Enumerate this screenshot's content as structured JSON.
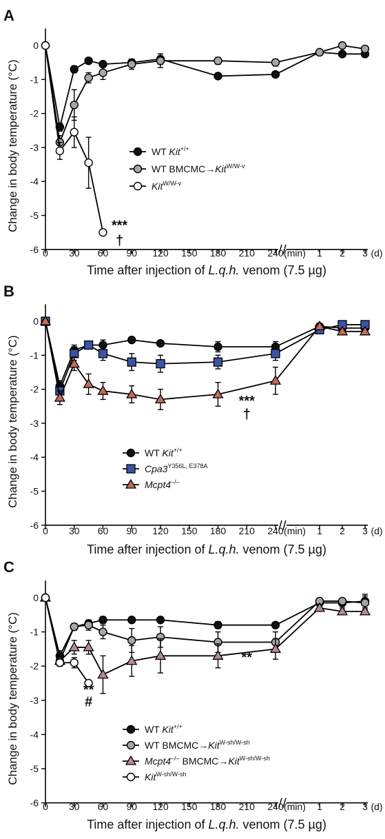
{
  "chart_data": [
    {
      "panel_label": "A",
      "type": "line",
      "ylabel": "Change in body temperature (°C)",
      "xlabel_prefix": "Time after injection of ",
      "xlabel_italic": "L.q.h.",
      "xlabel_suffix": " venom (7.5 µg)",
      "ylim": [
        -6,
        0.5
      ],
      "yticks": [
        "0",
        "-1",
        "-2",
        "-3",
        "-4",
        "-5",
        "-6"
      ],
      "min_ticks": [
        "0",
        "30",
        "60",
        "90",
        "120",
        "150",
        "180",
        "210",
        "240"
      ],
      "min_unit": "(min)",
      "day_ticks": [
        "1",
        "2",
        "3"
      ],
      "day_unit": "(d)",
      "series": [
        {
          "name": "WT",
          "name_italic": "Kit",
          "name_sup": "+/+",
          "marker": "circle",
          "color": "#111111",
          "points": [
            [
              0,
              0
            ],
            [
              15,
              -2.4
            ],
            [
              30,
              -0.7
            ],
            [
              45,
              -0.45
            ],
            [
              60,
              -0.55
            ],
            [
              90,
              -0.5
            ],
            [
              120,
              -0.4
            ],
            [
              180,
              -0.9
            ],
            [
              240,
              -0.85
            ]
          ],
          "errors": [
            0,
            0.12,
            0.1,
            0.05,
            0.05,
            0.05,
            0.15,
            0.05,
            0.05
          ],
          "day_points": [
            [
              1,
              -0.2
            ],
            [
              2,
              -0.25
            ],
            [
              3,
              -0.25
            ]
          ],
          "day_errors": [
            0.05,
            0.05,
            0.05
          ]
        },
        {
          "name": "WT BMCMC→",
          "name_italic": "Kit",
          "name_sup": "W/W-v",
          "marker": "circle",
          "color": "#a6a6a6",
          "points": [
            [
              0,
              0
            ],
            [
              15,
              -2.85
            ],
            [
              30,
              -1.75
            ],
            [
              45,
              -0.95
            ],
            [
              60,
              -0.8
            ],
            [
              90,
              -0.55
            ],
            [
              120,
              -0.45
            ],
            [
              180,
              -0.45
            ],
            [
              240,
              -0.5
            ]
          ],
          "errors": [
            0,
            0.2,
            0.45,
            0.15,
            0.2,
            0.15,
            0.2,
            0.1,
            0.1
          ],
          "day_points": [
            [
              1,
              -0.2
            ],
            [
              2,
              0
            ],
            [
              3,
              -0.1
            ]
          ],
          "day_errors": [
            0.05,
            0.05,
            0.05
          ]
        },
        {
          "name": "",
          "name_italic": "Kit",
          "name_sup": "W/W-v",
          "marker": "circle",
          "color": "#ffffff",
          "points": [
            [
              0,
              0
            ],
            [
              15,
              -3.1
            ],
            [
              30,
              -2.55
            ],
            [
              45,
              -3.45
            ],
            [
              60,
              -5.5
            ]
          ],
          "errors": [
            0,
            0.25,
            0.45,
            0.75,
            0
          ],
          "day_points": [],
          "day_errors": []
        }
      ],
      "annotations": [
        {
          "text": "***",
          "x": 60,
          "y": -5.3
        },
        {
          "text": "†",
          "x": 60,
          "y": -5.75
        }
      ]
    },
    {
      "panel_label": "B",
      "type": "line",
      "ylabel": "Change in body temperature (°C)",
      "xlabel_prefix": "Time after injection of ",
      "xlabel_italic": "L.q.h.",
      "xlabel_suffix": " venom (7.5 µg)",
      "ylim": [
        -6,
        0.5
      ],
      "yticks": [
        "0",
        "-1",
        "-2",
        "-3",
        "-4",
        "-5",
        "-6"
      ],
      "min_ticks": [
        "0",
        "30",
        "60",
        "90",
        "120",
        "150",
        "180",
        "210",
        "240"
      ],
      "min_unit": "(min)",
      "day_ticks": [
        "1",
        "2",
        "3"
      ],
      "day_unit": "(d)",
      "series": [
        {
          "name": "WT",
          "name_italic": "Kit",
          "name_sup": "+/+",
          "marker": "circle",
          "color": "#111111",
          "points": [
            [
              0,
              0
            ],
            [
              15,
              -1.9
            ],
            [
              30,
              -0.85
            ],
            [
              45,
              -0.7
            ],
            [
              60,
              -0.7
            ],
            [
              90,
              -0.55
            ],
            [
              120,
              -0.65
            ],
            [
              180,
              -0.75
            ],
            [
              240,
              -0.75
            ]
          ],
          "errors": [
            0,
            0.15,
            0.15,
            0.1,
            0.15,
            0.05,
            0.05,
            0.15,
            0.15
          ],
          "day_points": [
            [
              1,
              -0.15
            ],
            [
              2,
              -0.2
            ],
            [
              3,
              -0.2
            ]
          ],
          "day_errors": [
            0.05,
            0.05,
            0.05
          ]
        },
        {
          "name": "",
          "name_italic": "Cpa3",
          "name_sup": "Y356L, E378A",
          "marker": "square",
          "color": "#3a55a5",
          "points": [
            [
              0,
              0
            ],
            [
              15,
              -2.05
            ],
            [
              30,
              -0.95
            ],
            [
              45,
              -0.7
            ],
            [
              60,
              -0.95
            ],
            [
              90,
              -1.2
            ],
            [
              120,
              -1.25
            ],
            [
              180,
              -1.2
            ],
            [
              240,
              -0.95
            ]
          ],
          "errors": [
            0,
            0.3,
            0.2,
            0.1,
            0.2,
            0.25,
            0.25,
            0.2,
            0.2
          ],
          "day_points": [
            [
              1,
              -0.25
            ],
            [
              2,
              -0.1
            ],
            [
              3,
              -0.1
            ]
          ],
          "day_errors": [
            0.05,
            0.05,
            0.05
          ]
        },
        {
          "name": "",
          "name_italic": "Mcpt4",
          "name_sup": "–/–",
          "marker": "triangle",
          "color": "#c46a5a",
          "points": [
            [
              0,
              0
            ],
            [
              15,
              -2.25
            ],
            [
              30,
              -1.25
            ],
            [
              45,
              -1.85
            ],
            [
              60,
              -2.05
            ],
            [
              90,
              -2.15
            ],
            [
              120,
              -2.3
            ],
            [
              180,
              -2.15
            ],
            [
              240,
              -1.75
            ]
          ],
          "errors": [
            0,
            0.2,
            0.2,
            0.3,
            0.25,
            0.25,
            0.3,
            0.35,
            0.4
          ],
          "day_points": [
            [
              1,
              -0.15
            ],
            [
              2,
              -0.3
            ],
            [
              3,
              -0.3
            ]
          ],
          "day_errors": [
            0.05,
            0.05,
            0.05
          ]
        }
      ],
      "annotations": [
        {
          "text": "***",
          "x": 210,
          "y": -2.35
        },
        {
          "text": "†",
          "x": 210,
          "y": -2.75
        }
      ]
    },
    {
      "panel_label": "C",
      "type": "line",
      "ylabel": "Change in body temperature (°C)",
      "xlabel_prefix": "Time after injection of ",
      "xlabel_italic": "L.q.h.",
      "xlabel_suffix": " venom (7.5 µg)",
      "ylim": [
        -6,
        0.5
      ],
      "yticks": [
        "0",
        "-1",
        "-2",
        "-3",
        "-4",
        "-5",
        "-6"
      ],
      "min_ticks": [
        "0",
        "30",
        "60",
        "90",
        "120",
        "150",
        "180",
        "210",
        "240"
      ],
      "min_unit": "(min)",
      "day_ticks": [
        "1",
        "2",
        "3"
      ],
      "day_unit": "(d)",
      "series": [
        {
          "name": "WT",
          "name_italic": "Kit",
          "name_sup": "+/+",
          "marker": "circle",
          "color": "#111111",
          "points": [
            [
              0,
              0
            ],
            [
              15,
              -1.7
            ],
            [
              30,
              -0.85
            ],
            [
              45,
              -0.75
            ],
            [
              60,
              -0.65
            ],
            [
              90,
              -0.65
            ],
            [
              120,
              -0.65
            ],
            [
              180,
              -0.8
            ],
            [
              240,
              -0.8
            ]
          ],
          "errors": [
            0,
            0.15,
            0.1,
            0.1,
            0.1,
            0.05,
            0.05,
            0.1,
            0.05
          ],
          "day_points": [
            [
              1,
              -0.15
            ],
            [
              2,
              -0.15
            ],
            [
              3,
              -0.1
            ]
          ],
          "day_errors": [
            0.1,
            0.1,
            0.2
          ]
        },
        {
          "name": "WT BMCMC→",
          "name_italic": "Kit",
          "name_sup": "W-sh/W-sh",
          "marker": "circle",
          "color": "#a6a6a6",
          "points": [
            [
              0,
              0
            ],
            [
              15,
              -1.85
            ],
            [
              30,
              -0.85
            ],
            [
              45,
              -0.8
            ],
            [
              60,
              -1.0
            ],
            [
              90,
              -1.25
            ],
            [
              120,
              -1.15
            ],
            [
              180,
              -1.3
            ],
            [
              240,
              -1.3
            ]
          ],
          "errors": [
            0,
            0.15,
            0.1,
            0.15,
            0.2,
            0.35,
            0.3,
            0.3,
            0.3
          ],
          "day_points": [
            [
              1,
              -0.1
            ],
            [
              2,
              -0.1
            ],
            [
              3,
              -0.15
            ]
          ],
          "day_errors": [
            0.05,
            0.05,
            0.2
          ]
        },
        {
          "name": "BMCMC→",
          "name_pre_italic": "Mcpt4",
          "name_pre_sup": "–/–",
          "name_italic": "Kit",
          "name_sup": "W-sh/W-sh",
          "marker": "triangle",
          "color": "#b5889c",
          "points": [
            [
              0,
              0
            ],
            [
              15,
              -1.85
            ],
            [
              30,
              -1.45
            ],
            [
              45,
              -1.45
            ],
            [
              60,
              -2.25
            ],
            [
              90,
              -1.85
            ],
            [
              120,
              -1.7
            ],
            [
              180,
              -1.7
            ],
            [
              240,
              -1.5
            ]
          ],
          "errors": [
            0,
            0.15,
            0.2,
            0.2,
            0.55,
            0.45,
            0.5,
            0.35,
            0.3
          ],
          "day_points": [
            [
              1,
              -0.3
            ],
            [
              2,
              -0.4
            ],
            [
              3,
              -0.4
            ]
          ],
          "day_errors": [
            0.1,
            0.1,
            0.1
          ]
        },
        {
          "name": "",
          "name_italic": "Kit",
          "name_sup": "W-sh/W-sh",
          "marker": "circle",
          "color": "#ffffff",
          "points": [
            [
              0,
              0
            ],
            [
              15,
              -1.9
            ],
            [
              30,
              -1.9
            ],
            [
              45,
              -2.5
            ]
          ],
          "errors": [
            0,
            0.1,
            0.15,
            0
          ],
          "day_points": [],
          "day_errors": []
        }
      ],
      "annotations": [
        {
          "text": "**",
          "x": 45,
          "y": -2.7
        },
        {
          "text": "#",
          "x": 45,
          "y": -3.05
        },
        {
          "text": "**",
          "x": 210,
          "y": -1.75
        }
      ]
    }
  ]
}
